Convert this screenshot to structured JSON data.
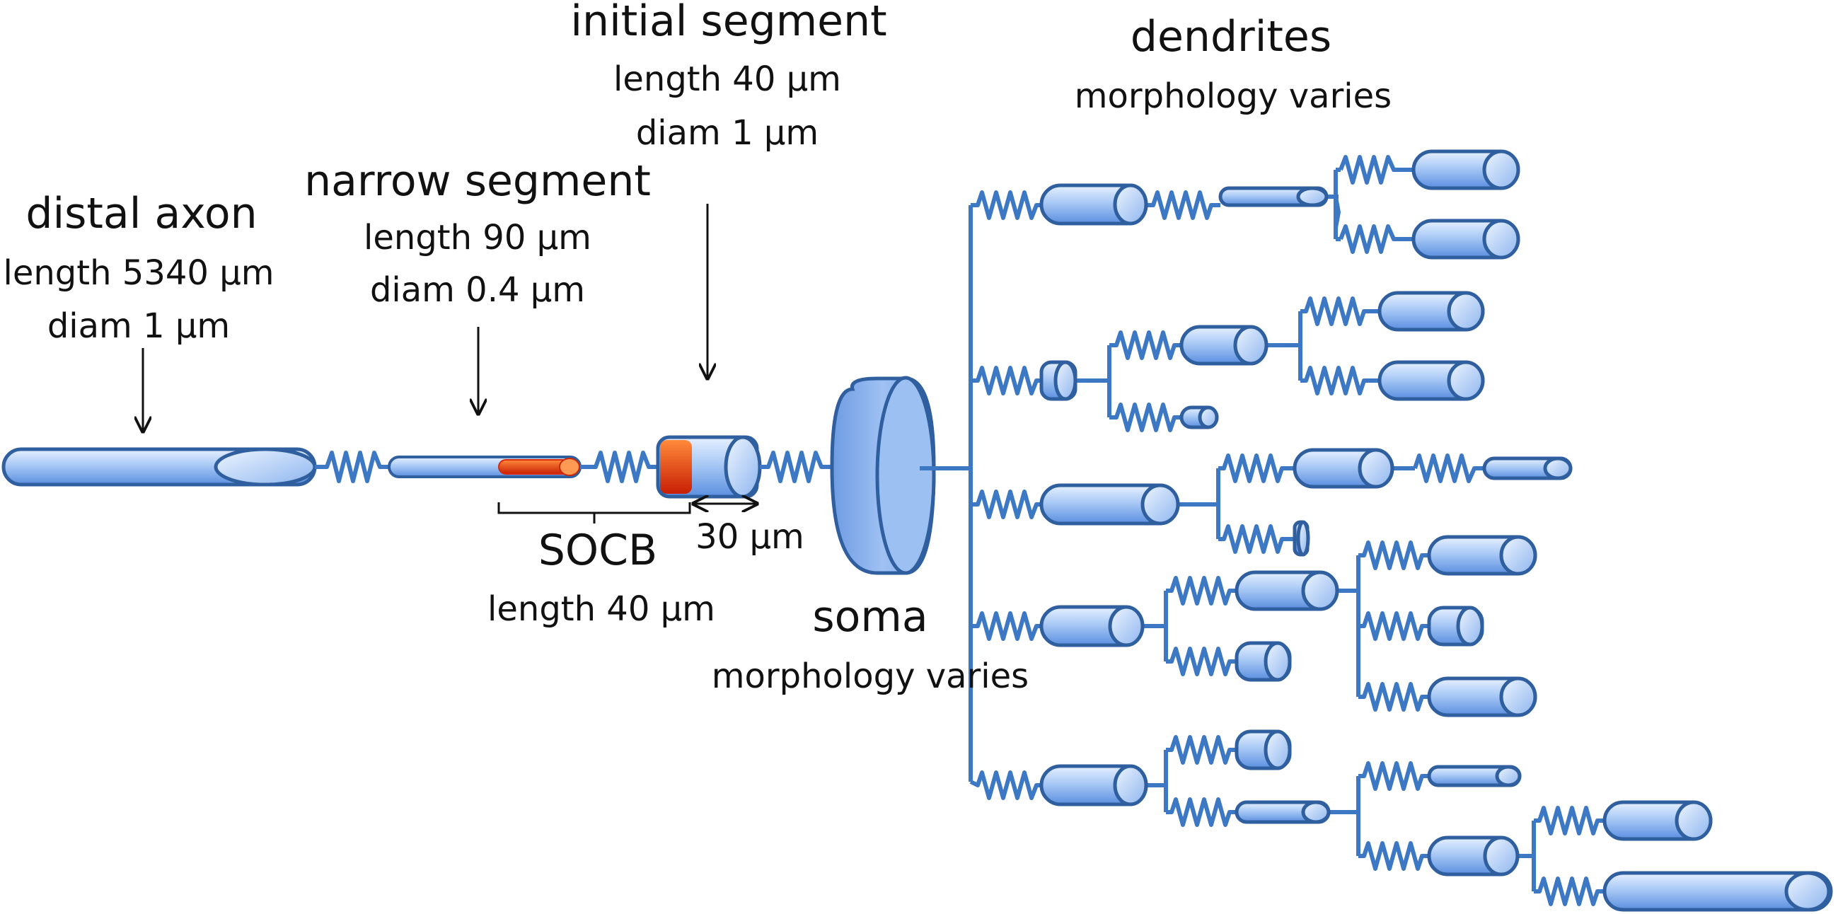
{
  "labels": {
    "distal_axon": {
      "title": "distal axon",
      "length": "length 5340 µm",
      "diam": "diam 1 µm"
    },
    "narrow_segment": {
      "title": "narrow segment",
      "length": "length 90 µm",
      "diam": "diam 0.4 µm"
    },
    "initial_segment": {
      "title": "initial segment",
      "length": "length 40 µm",
      "diam": "diam 1 µm"
    },
    "dendrites": {
      "title": "dendrites",
      "note": "morphology varies"
    },
    "socb": {
      "title": "SOCB",
      "length": "length 40 µm"
    },
    "dimension": "30 µm",
    "soma": {
      "title": "soma",
      "note": "morphology varies"
    }
  },
  "colors": {
    "cylinder_light": "#dbe9ff",
    "cylinder_mid": "#8fb8f2",
    "cylinder_dark": "#5a8ee0",
    "outline": "#2f5f9e",
    "spring": "#3d78c4",
    "socb_red": "#d82a0a",
    "socb_orange": "#ff7a2e",
    "text": "#111111"
  }
}
